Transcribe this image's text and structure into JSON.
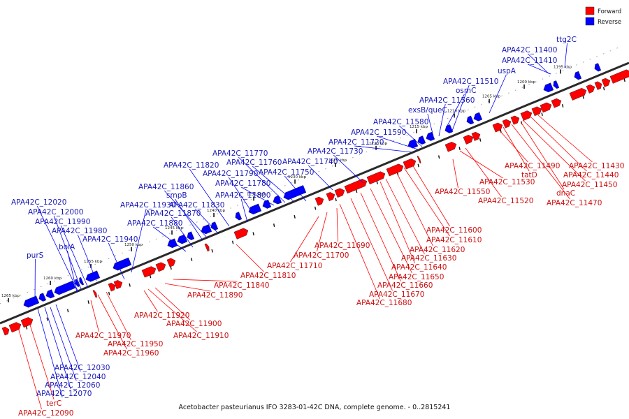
{
  "legend": [
    {
      "label": "Forward",
      "color": "#ff0000"
    },
    {
      "label": "Reverse",
      "color": "#0000ff"
    }
  ],
  "caption": "Acetobacter pasteurianus IFO 3283-01-42C DNA, complete genome. - 0..2815241",
  "ticks": [
    "1195 kbp",
    "1200 kbp",
    "1205 kbp",
    "1210 kbp",
    "1215 kbp",
    "1220 kbp",
    "1225 kbp",
    "1230 kbp",
    "1235 kbp",
    "1240 kbp",
    "1245 kbp",
    "1250 kbp",
    "1255 kbp",
    "1260 kbp",
    "1265 kbp"
  ],
  "reverse_labels": [
    "ttg2C",
    "APA42C_11400",
    "APA42C_11410",
    "uspA",
    "APA42C_11510",
    "osmC",
    "APA42C_11560",
    "exsB/queC",
    "APA42C_11580",
    "APA42C_11590",
    "APA42C_11720",
    "APA42C_11730",
    "APA42C_11740",
    "APA42C_11750",
    "APA42C_11760",
    "APA42C_11770",
    "APA42C_11780",
    "APA42C_11790",
    "APA42C_11800",
    "APA42C_11820",
    "APA42C_11830",
    "APA42C_11860",
    "smpB",
    "APA42C_11870",
    "APA42C_11880",
    "APA42C_11930",
    "APA42C_11940",
    "APA42C_11980",
    "APA42C_11990",
    "APA42C_12000",
    "APA42C_12020",
    "bolA",
    "purS",
    "APA42C_12030",
    "APA42C_12040",
    "APA42C_12060",
    "APA42C_12070"
  ],
  "forward_labels": [
    "APA42C_11430",
    "APA42C_11440",
    "APA42C_11450",
    "APA42C_11470",
    "dnaC",
    "tatD",
    "APA42C_11490",
    "APA42C_11520",
    "APA42C_11530",
    "APA42C_11550",
    "APA42C_11600",
    "APA42C_11610",
    "APA42C_11620",
    "APA42C_11630",
    "APA42C_11640",
    "APA42C_11650",
    "APA42C_11660",
    "APA42C_11670",
    "APA42C_11680",
    "APA42C_11690",
    "APA42C_11700",
    "APA42C_11710",
    "APA42C_11810",
    "APA42C_11840",
    "APA42C_11890",
    "APA42C_11900",
    "APA42C_11910",
    "APA42C_11920",
    "APA42C_11950",
    "APA42C_11960",
    "APA42C_11970",
    "terC",
    "APA42C_12090"
  ]
}
